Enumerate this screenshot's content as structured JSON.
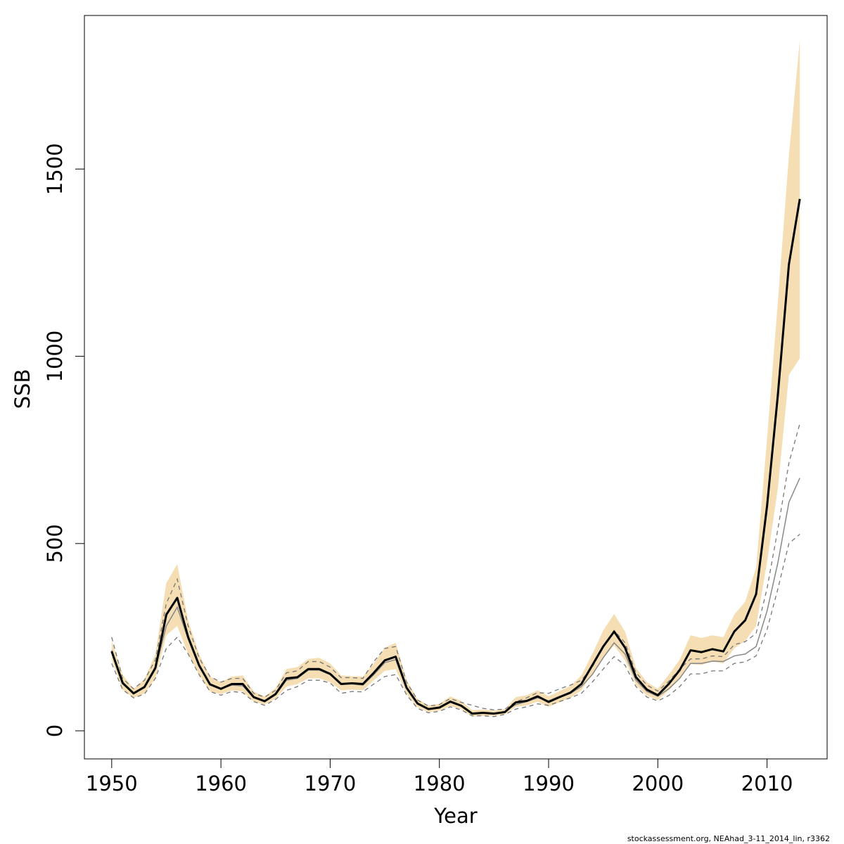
{
  "chart_data": {
    "type": "line",
    "xlabel": "Year",
    "ylabel": "SSB",
    "xlim": [
      1947.5,
      2015.5
    ],
    "ylim": [
      -75,
      1910
    ],
    "xticks": [
      1950,
      1960,
      1970,
      1980,
      1990,
      2000,
      2010
    ],
    "yticks": [
      0,
      500,
      1000,
      1500
    ],
    "grid": false,
    "legend": "none",
    "x": [
      1950,
      1951,
      1952,
      1953,
      1954,
      1955,
      1956,
      1957,
      1958,
      1959,
      1960,
      1961,
      1962,
      1963,
      1964,
      1965,
      1966,
      1967,
      1968,
      1969,
      1970,
      1971,
      1972,
      1973,
      1974,
      1975,
      1976,
      1977,
      1978,
      1979,
      1980,
      1981,
      1982,
      1983,
      1984,
      1985,
      1986,
      1987,
      1988,
      1989,
      1990,
      1991,
      1992,
      1993,
      1994,
      1995,
      1996,
      1997,
      1998,
      1999,
      2000,
      2001,
      2002,
      2003,
      2004,
      2005,
      2006,
      2007,
      2008,
      2009,
      2010,
      2011,
      2012,
      2013
    ],
    "series": [
      {
        "role": "estimate",
        "color": "#000000",
        "values": [
          212,
          128,
          100,
          117,
          168,
          310,
          355,
          250,
          175,
          124,
          112,
          125,
          125,
          90,
          79,
          98,
          140,
          143,
          165,
          165,
          152,
          125,
          127,
          125,
          155,
          188,
          198,
          115,
          73,
          58,
          62,
          78,
          67,
          46,
          48,
          46,
          50,
          76,
          80,
          92,
          77,
          90,
          102,
          125,
          175,
          225,
          265,
          222,
          143,
          110,
          95,
          125,
          162,
          215,
          210,
          218,
          212,
          265,
          295,
          365,
          600,
          900,
          1245,
          1420
        ]
      },
      {
        "role": "confidence-band",
        "color": "#f5deb3",
        "lower": [
          190,
          110,
          88,
          100,
          140,
          255,
          280,
          205,
          150,
          105,
          98,
          108,
          105,
          78,
          70,
          86,
          118,
          125,
          140,
          140,
          130,
          108,
          110,
          108,
          135,
          160,
          165,
          98,
          63,
          50,
          54,
          66,
          58,
          38,
          40,
          40,
          44,
          64,
          68,
          78,
          64,
          76,
          88,
          108,
          152,
          195,
          228,
          188,
          122,
          94,
          82,
          108,
          138,
          178,
          176,
          185,
          180,
          220,
          240,
          280,
          450,
          650,
          950,
          995
        ]
      },
      {
        "role": "confidence-band-upper",
        "color": "#f5deb3",
        "upper": [
          240,
          150,
          112,
          138,
          205,
          395,
          445,
          295,
          205,
          145,
          130,
          145,
          148,
          105,
          92,
          114,
          165,
          170,
          192,
          195,
          180,
          148,
          146,
          145,
          180,
          222,
          235,
          135,
          85,
          68,
          72,
          92,
          80,
          55,
          57,
          54,
          58,
          90,
          95,
          108,
          92,
          106,
          120,
          148,
          205,
          268,
          312,
          265,
          168,
          130,
          112,
          150,
          190,
          255,
          248,
          255,
          250,
          310,
          345,
          435,
          780,
          1150,
          1535,
          1845
        ]
      },
      {
        "role": "comparison-run",
        "color": "#888888",
        "values": [
          215,
          125,
          100,
          115,
          165,
          280,
          330,
          245,
          172,
          125,
          112,
          122,
          120,
          88,
          78,
          96,
          135,
          140,
          162,
          162,
          150,
          124,
          125,
          122,
          150,
          182,
          190,
          112,
          72,
          58,
          62,
          76,
          66,
          46,
          47,
          46,
          52,
          70,
          78,
          88,
          80,
          92,
          100,
          118,
          150,
          195,
          235,
          205,
          135,
          105,
          92,
          112,
          140,
          180,
          180,
          186,
          185,
          200,
          205,
          225,
          320,
          450,
          610,
          675
        ]
      },
      {
        "role": "comparison-run-upper",
        "color": "#777777",
        "values": [
          250,
          140,
          112,
          135,
          190,
          340,
          405,
          280,
          195,
          145,
          130,
          140,
          140,
          100,
          90,
          108,
          155,
          160,
          185,
          185,
          170,
          142,
          142,
          140,
          185,
          220,
          225,
          130,
          82,
          66,
          70,
          86,
          76,
          68,
          60,
          56,
          58,
          78,
          88,
          102,
          100,
          112,
          122,
          135,
          170,
          225,
          268,
          235,
          155,
          122,
          106,
          132,
          165,
          192,
          192,
          200,
          198,
          230,
          238,
          260,
          380,
          540,
          715,
          820
        ]
      },
      {
        "role": "comparison-run-lower",
        "color": "#777777",
        "values": [
          180,
          110,
          88,
          98,
          140,
          220,
          250,
          205,
          150,
          105,
          95,
          105,
          102,
          78,
          68,
          84,
          108,
          118,
          135,
          135,
          128,
          100,
          105,
          104,
          125,
          145,
          150,
          96,
          60,
          48,
          52,
          64,
          56,
          40,
          40,
          38,
          44,
          58,
          64,
          72,
          68,
          78,
          88,
          100,
          130,
          165,
          198,
          175,
          118,
          90,
          80,
          94,
          118,
          152,
          152,
          160,
          160,
          180,
          184,
          200,
          270,
          380,
          500,
          525
        ]
      }
    ]
  },
  "footer": {
    "note": "stockassessment.org, NEAhad_3-11_2014_lin, r3362"
  }
}
